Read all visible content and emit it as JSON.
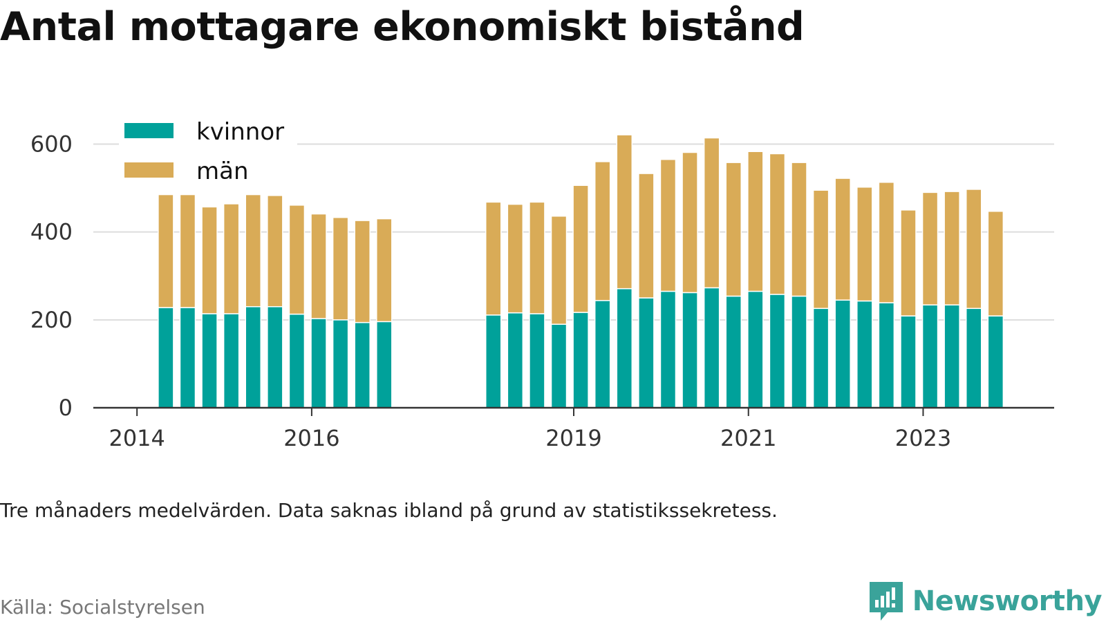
{
  "title": "Antal mottagare ekonomiskt bistånd",
  "note": "Tre månaders medelvärden. Data saknas ibland på grund av statistikssekretess.",
  "source": "Källa: Socialstyrelsen",
  "brand": {
    "name": "Newsworthy",
    "icon": "newsworthy-logo-icon",
    "color": "#3aa39a"
  },
  "colors": {
    "kvinnor": "#00a19a",
    "man": "#d9ab57",
    "grid": "#dddddd",
    "axis": "#333333"
  },
  "chart_data": {
    "type": "bar",
    "stacked": true,
    "title": "Antal mottagare ekonomiskt bistånd",
    "xlabel": "",
    "ylabel": "",
    "ylim": [
      0,
      640
    ],
    "yticks": [
      0,
      200,
      400,
      600
    ],
    "xticks": [
      {
        "label": "2014",
        "x": 2014.0
      },
      {
        "label": "2016",
        "x": 2016.0
      },
      {
        "label": "2019",
        "x": 2019.0
      },
      {
        "label": "2021",
        "x": 2021.0
      },
      {
        "label": "2023",
        "x": 2023.0
      }
    ],
    "xlim": [
      2013.5,
      2024.5
    ],
    "grid": true,
    "legend": "top-left",
    "x": [
      2014.33,
      2014.58,
      2014.83,
      2015.08,
      2015.33,
      2015.58,
      2015.83,
      2016.08,
      2016.33,
      2016.58,
      2016.83,
      2018.08,
      2018.33,
      2018.58,
      2018.83,
      2019.08,
      2019.33,
      2019.58,
      2019.83,
      2020.08,
      2020.33,
      2020.58,
      2020.83,
      2021.08,
      2021.33,
      2021.58,
      2021.83,
      2022.08,
      2022.33,
      2022.58,
      2022.83,
      2023.08,
      2023.33,
      2023.58,
      2023.83
    ],
    "series": [
      {
        "name": "kvinnor",
        "values": [
          228,
          228,
          214,
          214,
          230,
          230,
          213,
          203,
          200,
          194,
          196,
          211,
          216,
          214,
          190,
          217,
          244,
          271,
          250,
          265,
          262,
          273,
          254,
          265,
          258,
          254,
          226,
          245,
          243,
          239,
          209,
          234,
          234,
          226,
          209
        ]
      },
      {
        "name": "män",
        "values": [
          257,
          257,
          243,
          250,
          255,
          253,
          248,
          238,
          233,
          232,
          234,
          257,
          247,
          254,
          246,
          289,
          316,
          350,
          283,
          300,
          319,
          341,
          304,
          318,
          320,
          304,
          269,
          277,
          259,
          274,
          241,
          256,
          258,
          271,
          238
        ]
      }
    ]
  }
}
